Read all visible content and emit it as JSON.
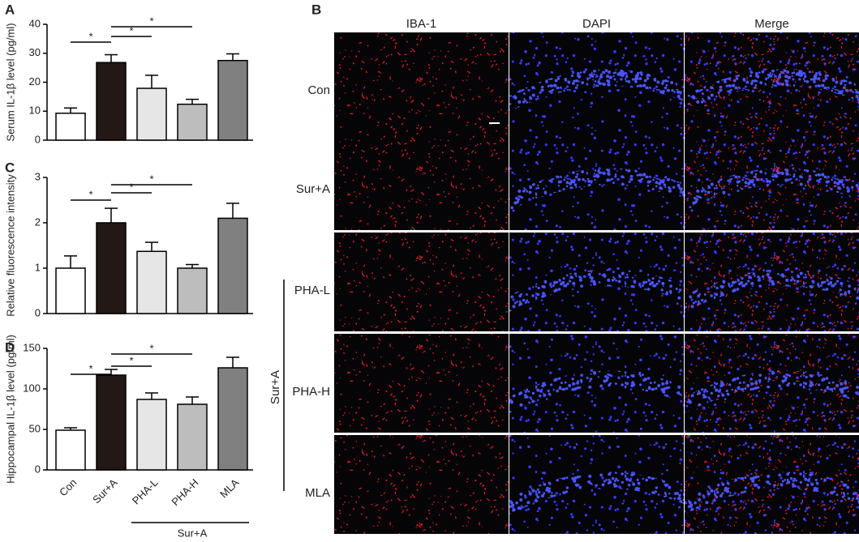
{
  "chart_data": [
    {
      "type": "bar",
      "panel": "A",
      "ylabel": "Serum IL-1β level (pg/ml)",
      "values": [
        9.3,
        26.8,
        17.9,
        12.4,
        27.5
      ],
      "errors": [
        1.8,
        2.7,
        4.5,
        1.7,
        2.3
      ],
      "colors": [
        "#ffffff",
        "#231815",
        "#e6e6e6",
        "#bdbdbd",
        "#808080"
      ],
      "ylim": [
        0,
        40
      ],
      "yticks": [
        0,
        10,
        20,
        30,
        40
      ],
      "annotations": [
        "*",
        "*",
        "*"
      ]
    },
    {
      "type": "bar",
      "panel": "C",
      "ylabel": "Relative fluorescence intensity",
      "values": [
        1.0,
        2.0,
        1.37,
        1.0,
        2.1
      ],
      "errors": [
        0.27,
        0.32,
        0.2,
        0.08,
        0.33
      ],
      "colors": [
        "#ffffff",
        "#231815",
        "#e6e6e6",
        "#bdbdbd",
        "#808080"
      ],
      "ylim": [
        0,
        3
      ],
      "yticks": [
        0,
        1,
        2,
        3
      ],
      "annotations": [
        "*",
        "*",
        "*"
      ]
    },
    {
      "type": "bar",
      "panel": "D",
      "ylabel": "Hippocampal IL-1β level (pg/ml)",
      "categories": [
        "Con",
        "Sur+A",
        "PHA-L",
        "PHA-H",
        "MLA"
      ],
      "group_label": "Sur+A",
      "values": [
        49,
        117,
        87,
        81,
        126
      ],
      "errors": [
        3,
        7,
        8,
        9,
        13
      ],
      "colors": [
        "#ffffff",
        "#231815",
        "#e6e6e6",
        "#bdbdbd",
        "#808080"
      ],
      "ylim": [
        0,
        150
      ],
      "yticks": [
        0,
        50,
        100,
        150
      ],
      "annotations": [
        "*",
        "*",
        "*"
      ]
    }
  ],
  "panel_b": {
    "letter": "B",
    "columns": [
      "IBA-1",
      "DAPI",
      "Merge"
    ],
    "rows": [
      "Con",
      "Sur+A",
      "PHA-L",
      "PHA-H",
      "MLA"
    ],
    "group_label": "Sur+A"
  }
}
